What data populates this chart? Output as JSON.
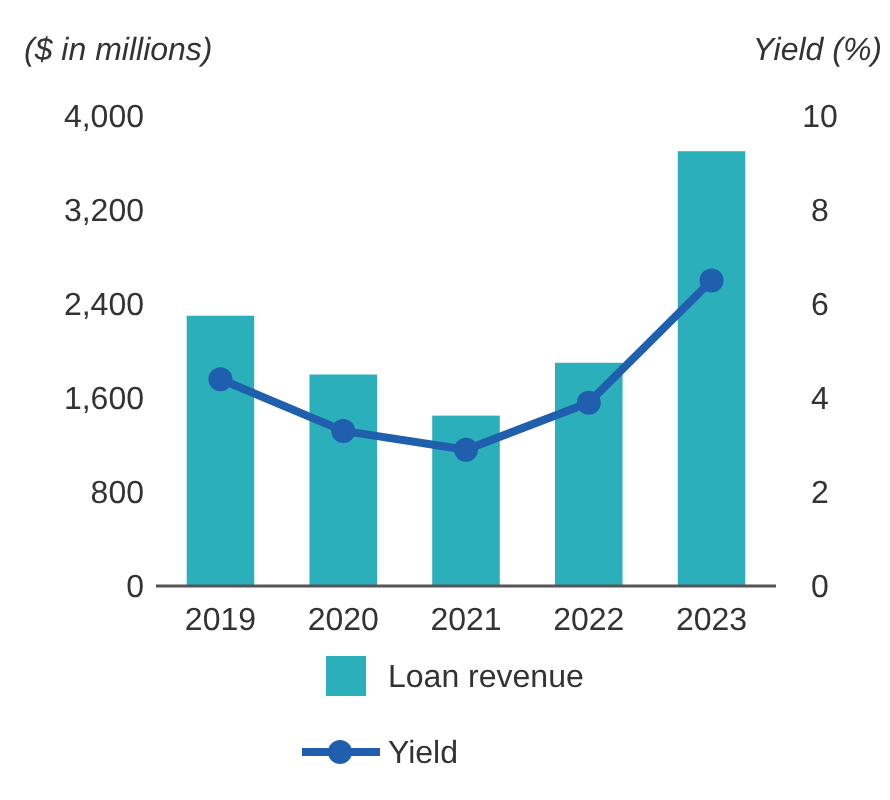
{
  "chart_data": {
    "type": "bar",
    "ylabel": "($ in millions)",
    "y2label": "Yield (%)",
    "categories": [
      "2019",
      "2020",
      "2021",
      "2022",
      "2023"
    ],
    "series": [
      {
        "name": "Loan revenue",
        "color": "#2aafbb",
        "values": [
          2300,
          1800,
          1450,
          1900,
          3700
        ]
      },
      {
        "name": "Yield",
        "type": "line",
        "axis": "y2",
        "color": "#1f5fae",
        "marker": "circle",
        "values": [
          4.4,
          3.3,
          2.9,
          3.9,
          6.5
        ]
      }
    ],
    "ylim": [
      0,
      4000
    ],
    "yticks": [
      0,
      800,
      {
        "value": 1600,
        "label": "1,600"
      },
      {
        "value": 2400,
        "label": "2,400"
      },
      {
        "value": 3200,
        "label": "3,200"
      },
      {
        "value": 4000,
        "label": "4,000"
      }
    ],
    "y2lim": [
      0,
      10
    ],
    "y2ticks": [
      0,
      2,
      4,
      6,
      8,
      10
    ],
    "legend": "bottom"
  }
}
